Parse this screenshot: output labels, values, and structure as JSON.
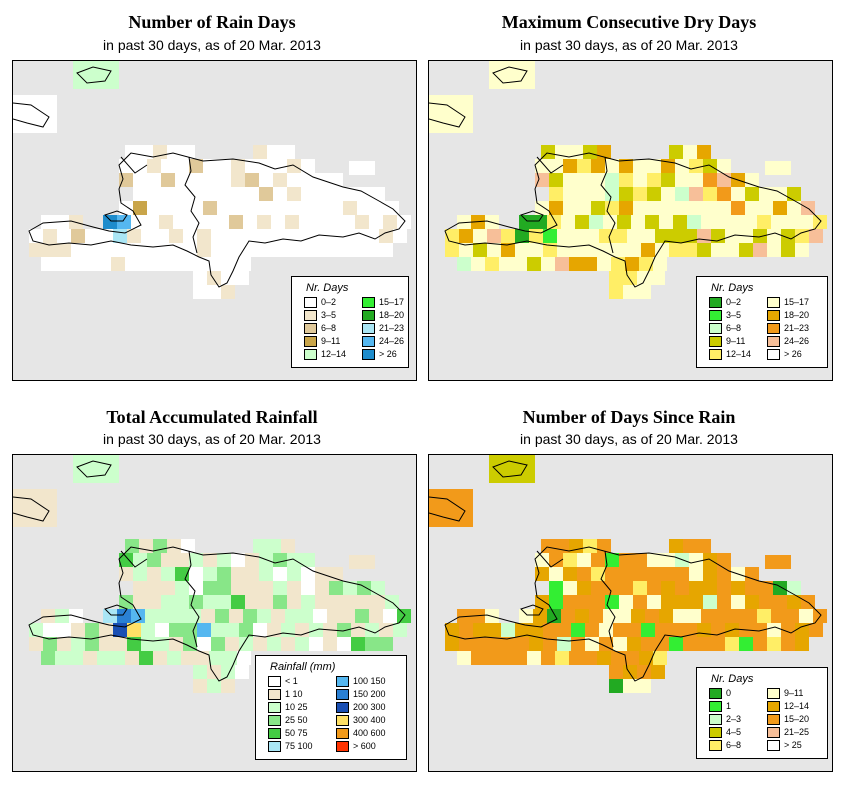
{
  "panels": [
    {
      "id": "rain-days",
      "title": "Number of Rain Days",
      "subtitle": "in past 30 days, as of  20 Mar. 2013",
      "legend": {
        "title": "Nr. Days",
        "items": [
          {
            "label": "0–2",
            "color": "#ffffff"
          },
          {
            "label": "3–5",
            "color": "#f2e6cc"
          },
          {
            "label": "6–8",
            "color": "#e0c99a"
          },
          {
            "label": "9–11",
            "color": "#c9a54a"
          },
          {
            "label": "12–14",
            "color": "#ccffcc"
          },
          {
            "label": "15–17",
            "color": "#33ee33"
          },
          {
            "label": "18–20",
            "color": "#22aa22"
          },
          {
            "label": "21–23",
            "color": "#aae6f5"
          },
          {
            "label": "24–26",
            "color": "#55b7f0"
          },
          {
            "label": "> 26",
            "color": "#1e8ccc"
          }
        ]
      }
    },
    {
      "id": "max-dry-days",
      "title": "Maximum Consecutive Dry Days",
      "subtitle": "in past 30 days, as of  20 Mar. 2013",
      "legend": {
        "title": "Nr. Days",
        "items": [
          {
            "label": "0–2",
            "color": "#22aa22"
          },
          {
            "label": "3–5",
            "color": "#33ee33"
          },
          {
            "label": "6–8",
            "color": "#ccffcc"
          },
          {
            "label": "9–11",
            "color": "#cccc00"
          },
          {
            "label": "12–14",
            "color": "#ffee66"
          },
          {
            "label": "15–17",
            "color": "#ffffcc"
          },
          {
            "label": "18–20",
            "color": "#e6a600"
          },
          {
            "label": "21–23",
            "color": "#f29a1a"
          },
          {
            "label": "24–26",
            "color": "#f7bf99"
          },
          {
            "label": "> 26",
            "color": "#ffffff"
          }
        ]
      }
    },
    {
      "id": "total-rainfall",
      "title": "Total Accumulated Rainfall",
      "subtitle": "in past 30 days, as of  20 Mar. 2013",
      "legend": {
        "title": "Rainfall (mm)",
        "items": [
          {
            "label": "< 1",
            "color": "#ffffff"
          },
          {
            "label": "1   10",
            "color": "#f2e6cc"
          },
          {
            "label": "10   25",
            "color": "#ccffcc"
          },
          {
            "label": "25   50",
            "color": "#88e688"
          },
          {
            "label": "50   75",
            "color": "#44cc44"
          },
          {
            "label": "75  100",
            "color": "#aae6f5"
          },
          {
            "label": "100  150",
            "color": "#55b7f0"
          },
          {
            "label": "150  200",
            "color": "#2a80d4"
          },
          {
            "label": "200  300",
            "color": "#1a4fb3"
          },
          {
            "label": "300  400",
            "color": "#ffe066"
          },
          {
            "label": "400  600",
            "color": "#f29a1a"
          },
          {
            "label": "> 600",
            "color": "#ff3300"
          }
        ]
      }
    },
    {
      "id": "days-since-rain",
      "title": "Number of Days Since Rain",
      "subtitle": "in past 30 days, as of  20 Mar. 2013",
      "legend": {
        "title": "Nr. Days",
        "items": [
          {
            "label": "0",
            "color": "#22aa22"
          },
          {
            "label": "1",
            "color": "#33ee33"
          },
          {
            "label": "2–3",
            "color": "#ccffcc"
          },
          {
            "label": "4–5",
            "color": "#cccc00"
          },
          {
            "label": "6–8",
            "color": "#ffee66"
          },
          {
            "label": "9–11",
            "color": "#ffffcc"
          },
          {
            "label": "12–14",
            "color": "#e6a600"
          },
          {
            "label": "15–20",
            "color": "#f29a1a"
          },
          {
            "label": "21–25",
            "color": "#f7bf99"
          },
          {
            "label": "> 25",
            "color": "#ffffff"
          }
        ]
      }
    }
  ]
}
